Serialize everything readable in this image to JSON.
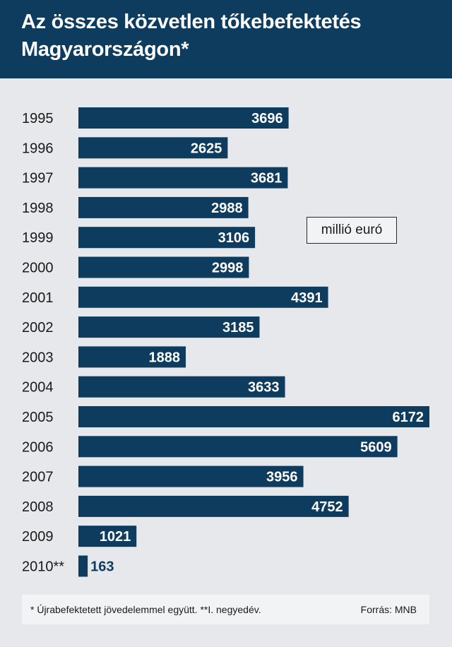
{
  "header": {
    "title_line1": "Az összes közvetlen tőkebefektetés",
    "title_line2": "Magyarországon*"
  },
  "unit_label": "millió euró",
  "footer": {
    "note": "* Újrabefektetett jövedelemmel együtt. **I. negyedév.",
    "source": "Forrás: MNB"
  },
  "colors": {
    "header_bg": "#0e3c5f",
    "bar": "#0e3c5f",
    "background": "#e6e8eb"
  },
  "chart_data": {
    "type": "bar",
    "orientation": "horizontal",
    "categories": [
      "1995",
      "1996",
      "1997",
      "1998",
      "1999",
      "2000",
      "2001",
      "2002",
      "2003",
      "2004",
      "2005",
      "2006",
      "2007",
      "2008",
      "2009",
      "2010**"
    ],
    "values": [
      3696,
      2625,
      3681,
      2988,
      3106,
      2998,
      4391,
      3185,
      1888,
      3633,
      6172,
      5609,
      3956,
      4752,
      1021,
      163
    ],
    "title": "Az összes közvetlen tőkebefektetés Magyarországon*",
    "unit": "millió euró",
    "data_labels": true,
    "grid": false
  }
}
